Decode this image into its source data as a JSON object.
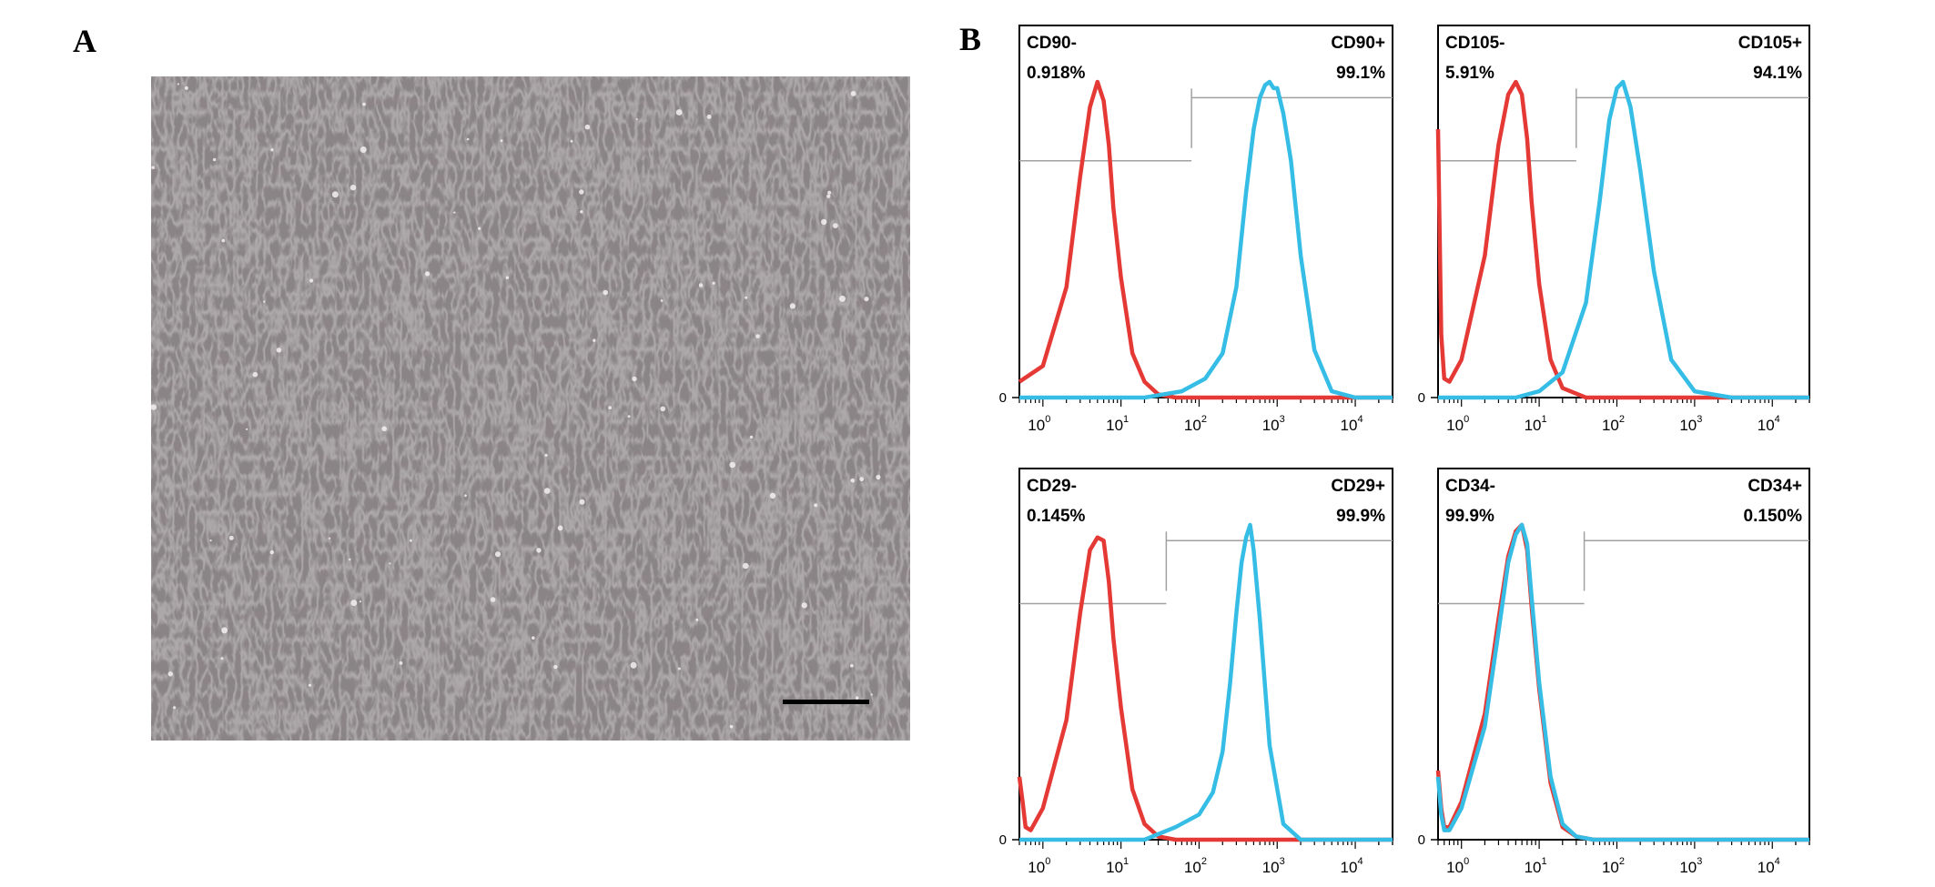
{
  "figure": {
    "panel_a_letter": "A",
    "panel_b_letter": "B",
    "colors": {
      "isotype": "#e53935",
      "marker": "#35bde6",
      "gate_line": "#a0a0a0",
      "frame": "#000000"
    }
  },
  "micrograph": {
    "description_visible": false
  },
  "chart_data": [
    {
      "type": "line",
      "xscale": "log",
      "xlim": [
        0.5,
        30000
      ],
      "xticks": [
        1,
        10,
        100,
        1000,
        10000
      ],
      "xtick_base": "10",
      "xtick_exponents": [
        "0",
        "1",
        "2",
        "3",
        "4"
      ],
      "y_zero_label": "0",
      "gate_neg": {
        "label": "CD90-",
        "value": "0.918%"
      },
      "gate_pos": {
        "label": "CD90+",
        "value": "99.1%"
      },
      "gate_split": 80,
      "series": [
        {
          "x": [
            0.5,
            1,
            2,
            3,
            4,
            5,
            6,
            7,
            8,
            10,
            14,
            20,
            30,
            50
          ],
          "y": [
            5,
            10,
            35,
            70,
            92,
            100,
            94,
            80,
            60,
            38,
            14,
            5,
            1,
            0
          ]
        },
        {
          "x": [
            0.5,
            20,
            60,
            120,
            200,
            300,
            400,
            500,
            600,
            700,
            800,
            900,
            1000,
            1200,
            1500,
            2000,
            3000,
            5000,
            10000
          ],
          "y": [
            0,
            0,
            2,
            6,
            14,
            35,
            65,
            85,
            95,
            99,
            100,
            98,
            98,
            90,
            75,
            45,
            15,
            2,
            0
          ]
        }
      ]
    },
    {
      "type": "line",
      "xscale": "log",
      "xlim": [
        0.5,
        30000
      ],
      "xticks": [
        1,
        10,
        100,
        1000,
        10000
      ],
      "xtick_base": "10",
      "xtick_exponents": [
        "0",
        "1",
        "2",
        "3",
        "4"
      ],
      "y_zero_label": "0",
      "gate_neg": {
        "label": "CD105-",
        "value": "5.91%"
      },
      "gate_pos": {
        "label": "CD105+",
        "value": "94.1%"
      },
      "gate_split": 30,
      "series": [
        {
          "x": [
            0.5,
            0.55,
            0.6,
            0.7,
            1,
            2,
            3,
            4,
            5,
            6,
            7,
            8,
            10,
            14,
            20,
            40
          ],
          "y": [
            85,
            20,
            6,
            5,
            12,
            45,
            80,
            96,
            100,
            96,
            82,
            62,
            36,
            12,
            3,
            0
          ]
        },
        {
          "x": [
            0.5,
            5,
            10,
            20,
            40,
            60,
            80,
            100,
            120,
            150,
            200,
            300,
            500,
            1000,
            3000
          ],
          "y": [
            0,
            0,
            2,
            8,
            30,
            62,
            88,
            98,
            100,
            92,
            72,
            40,
            12,
            2,
            0
          ]
        }
      ]
    },
    {
      "type": "line",
      "xscale": "log",
      "xlim": [
        0.5,
        30000
      ],
      "xticks": [
        1,
        10,
        100,
        1000,
        10000
      ],
      "xtick_base": "10",
      "xtick_exponents": [
        "0",
        "1",
        "2",
        "3",
        "4"
      ],
      "y_zero_label": "0",
      "gate_neg": {
        "label": "CD29-",
        "value": "0.145%"
      },
      "gate_pos": {
        "label": "CD29+",
        "value": "99.9%"
      },
      "gate_split": 38,
      "series": [
        {
          "x": [
            0.5,
            0.55,
            0.6,
            0.7,
            1,
            2,
            3,
            4,
            5,
            6,
            7,
            8,
            10,
            14,
            20,
            30,
            50
          ],
          "y": [
            20,
            12,
            4,
            3,
            10,
            38,
            72,
            92,
            96,
            95,
            82,
            64,
            42,
            16,
            5,
            1,
            0
          ]
        },
        {
          "x": [
            0.5,
            20,
            50,
            100,
            150,
            200,
            250,
            300,
            350,
            400,
            450,
            500,
            600,
            800,
            1200,
            2000
          ],
          "y": [
            0,
            0,
            4,
            8,
            15,
            28,
            50,
            72,
            88,
            96,
            100,
            92,
            70,
            30,
            5,
            0
          ]
        }
      ]
    },
    {
      "type": "line",
      "xscale": "log",
      "xlim": [
        0.5,
        30000
      ],
      "xticks": [
        1,
        10,
        100,
        1000,
        10000
      ],
      "xtick_base": "10",
      "xtick_exponents": [
        "0",
        "1",
        "2",
        "3",
        "4"
      ],
      "y_zero_label": "0",
      "gate_neg": {
        "label": "CD34-",
        "value": "99.9%"
      },
      "gate_pos": {
        "label": "CD34+",
        "value": "0.150%"
      },
      "gate_split": 38,
      "series": [
        {
          "x": [
            0.5,
            0.55,
            0.6,
            0.7,
            1,
            2,
            3,
            4,
            5,
            6,
            7,
            8,
            10,
            14,
            20,
            30,
            50
          ],
          "y": [
            22,
            10,
            4,
            4,
            12,
            40,
            70,
            90,
            98,
            100,
            92,
            74,
            48,
            18,
            4,
            1,
            0
          ]
        },
        {
          "x": [
            0.5,
            0.55,
            0.6,
            0.7,
            1,
            2,
            3,
            4,
            5,
            6,
            7,
            8,
            10,
            14,
            20,
            30,
            50
          ],
          "y": [
            20,
            8,
            3,
            3,
            10,
            36,
            66,
            88,
            97,
            100,
            94,
            77,
            50,
            20,
            5,
            1,
            0
          ]
        }
      ]
    }
  ]
}
